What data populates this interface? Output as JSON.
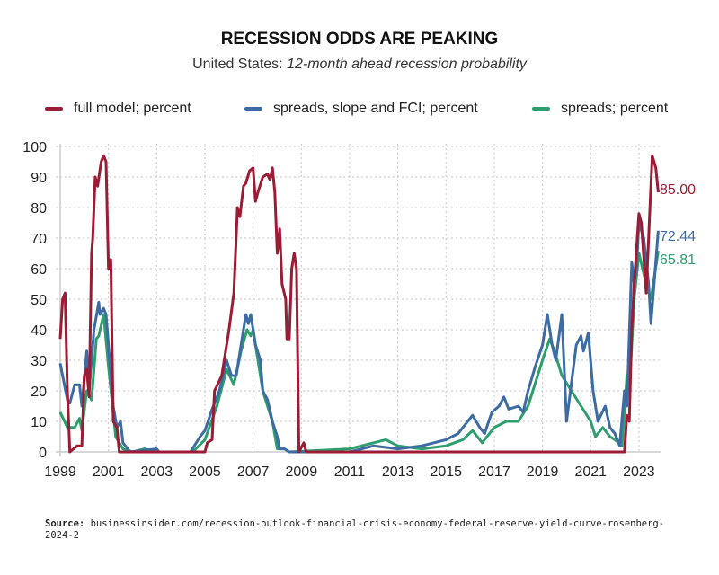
{
  "chart_data": {
    "type": "line",
    "title": "RECESSION ODDS ARE PEAKING",
    "subtitle_prefix": "United States: ",
    "subtitle_italic": "12-month ahead recession probability",
    "xlabel": "",
    "ylabel": "",
    "ylim": [
      0,
      100
    ],
    "xlim": [
      1999,
      2023.9
    ],
    "yticks": [
      0,
      10,
      20,
      30,
      40,
      50,
      60,
      70,
      80,
      90,
      100
    ],
    "xticks": [
      1999,
      2001,
      2003,
      2005,
      2007,
      2009,
      2011,
      2013,
      2015,
      2017,
      2019,
      2021,
      2023
    ],
    "grid": true,
    "legend_position": "top",
    "series": [
      {
        "name": "full model; percent",
        "color": "#9b1c34",
        "end_label": "85.00",
        "points": [
          [
            1999.0,
            37
          ],
          [
            1999.1,
            50
          ],
          [
            1999.2,
            52
          ],
          [
            1999.3,
            20
          ],
          [
            1999.4,
            0
          ],
          [
            1999.7,
            2
          ],
          [
            1999.9,
            2
          ],
          [
            2000.0,
            25
          ],
          [
            2000.1,
            27
          ],
          [
            2000.2,
            18
          ],
          [
            2000.3,
            65
          ],
          [
            2000.35,
            70
          ],
          [
            2000.45,
            90
          ],
          [
            2000.55,
            87
          ],
          [
            2000.7,
            95
          ],
          [
            2000.8,
            97
          ],
          [
            2000.9,
            95
          ],
          [
            2001.0,
            60
          ],
          [
            2001.1,
            63
          ],
          [
            2001.2,
            10
          ],
          [
            2001.35,
            8
          ],
          [
            2001.45,
            0
          ],
          [
            2005.0,
            0
          ],
          [
            2005.1,
            3
          ],
          [
            2005.3,
            4
          ],
          [
            2005.4,
            20
          ],
          [
            2005.7,
            25
          ],
          [
            2006.0,
            40
          ],
          [
            2006.2,
            52
          ],
          [
            2006.35,
            80
          ],
          [
            2006.45,
            77
          ],
          [
            2006.6,
            87
          ],
          [
            2006.7,
            88
          ],
          [
            2006.85,
            92
          ],
          [
            2007.0,
            93
          ],
          [
            2007.1,
            82
          ],
          [
            2007.2,
            85
          ],
          [
            2007.4,
            90
          ],
          [
            2007.6,
            91
          ],
          [
            2007.7,
            89
          ],
          [
            2007.8,
            93
          ],
          [
            2007.9,
            85
          ],
          [
            2008.0,
            65
          ],
          [
            2008.1,
            73
          ],
          [
            2008.2,
            55
          ],
          [
            2008.35,
            50
          ],
          [
            2008.4,
            37
          ],
          [
            2008.5,
            37
          ],
          [
            2008.6,
            60
          ],
          [
            2008.7,
            65
          ],
          [
            2008.8,
            60
          ],
          [
            2008.9,
            0
          ],
          [
            2009.1,
            3
          ],
          [
            2009.2,
            0
          ],
          [
            2022.4,
            0
          ],
          [
            2022.5,
            12
          ],
          [
            2022.6,
            10
          ],
          [
            2022.7,
            40
          ],
          [
            2022.8,
            55
          ],
          [
            2023.0,
            78
          ],
          [
            2023.1,
            75
          ],
          [
            2023.3,
            52
          ],
          [
            2023.4,
            70
          ],
          [
            2023.55,
            97
          ],
          [
            2023.7,
            93
          ],
          [
            2023.8,
            85
          ]
        ]
      },
      {
        "name": "spreads, slope and FCI; percent",
        "color": "#3d6ba3",
        "end_label": "72.44",
        "points": [
          [
            1999.0,
            29
          ],
          [
            1999.3,
            17
          ],
          [
            1999.4,
            16
          ],
          [
            1999.6,
            22
          ],
          [
            1999.8,
            22
          ],
          [
            1999.9,
            15
          ],
          [
            2000.1,
            33
          ],
          [
            2000.2,
            20
          ],
          [
            2000.4,
            40
          ],
          [
            2000.6,
            49
          ],
          [
            2000.65,
            45
          ],
          [
            2000.8,
            47
          ],
          [
            2000.9,
            45
          ],
          [
            2001.0,
            35
          ],
          [
            2001.2,
            15
          ],
          [
            2001.35,
            8
          ],
          [
            2001.5,
            10
          ],
          [
            2001.6,
            3
          ],
          [
            2001.9,
            0
          ],
          [
            2003.0,
            1
          ],
          [
            2003.1,
            0
          ],
          [
            2004.4,
            0
          ],
          [
            2004.8,
            5
          ],
          [
            2005.0,
            7
          ],
          [
            2005.3,
            14
          ],
          [
            2005.6,
            20
          ],
          [
            2005.9,
            30
          ],
          [
            2006.1,
            25
          ],
          [
            2006.3,
            25
          ],
          [
            2006.5,
            35
          ],
          [
            2006.7,
            45
          ],
          [
            2006.8,
            42
          ],
          [
            2006.9,
            45
          ],
          [
            2007.1,
            35
          ],
          [
            2007.3,
            30
          ],
          [
            2007.4,
            20
          ],
          [
            2007.6,
            17
          ],
          [
            2007.8,
            10
          ],
          [
            2008.0,
            5
          ],
          [
            2008.1,
            1
          ],
          [
            2008.3,
            1
          ],
          [
            2008.5,
            0
          ],
          [
            2011.0,
            0
          ],
          [
            2012.0,
            2
          ],
          [
            2013.0,
            1
          ],
          [
            2014.0,
            2
          ],
          [
            2015.0,
            4
          ],
          [
            2015.5,
            6
          ],
          [
            2016.1,
            12
          ],
          [
            2016.4,
            8
          ],
          [
            2016.6,
            6
          ],
          [
            2016.9,
            13
          ],
          [
            2017.2,
            15
          ],
          [
            2017.4,
            18
          ],
          [
            2017.6,
            14
          ],
          [
            2018.0,
            15
          ],
          [
            2018.2,
            13
          ],
          [
            2018.4,
            20
          ],
          [
            2018.7,
            28
          ],
          [
            2019.0,
            35
          ],
          [
            2019.2,
            45
          ],
          [
            2019.4,
            35
          ],
          [
            2019.55,
            30
          ],
          [
            2019.8,
            45
          ],
          [
            2020.0,
            10
          ],
          [
            2020.4,
            35
          ],
          [
            2020.6,
            38
          ],
          [
            2020.7,
            33
          ],
          [
            2020.9,
            39
          ],
          [
            2021.1,
            20
          ],
          [
            2021.3,
            10
          ],
          [
            2021.6,
            15
          ],
          [
            2021.8,
            8
          ],
          [
            2022.0,
            6
          ],
          [
            2022.2,
            2
          ],
          [
            2022.4,
            20
          ],
          [
            2022.5,
            15
          ],
          [
            2022.7,
            62
          ],
          [
            2022.8,
            55
          ],
          [
            2022.9,
            60
          ],
          [
            2023.0,
            75
          ],
          [
            2023.2,
            70
          ],
          [
            2023.4,
            55
          ],
          [
            2023.5,
            42
          ],
          [
            2023.8,
            72.44
          ]
        ]
      },
      {
        "name": "spreads; percent",
        "color": "#2e9e6e",
        "end_label": "65.81",
        "points": [
          [
            1999.0,
            13
          ],
          [
            1999.3,
            8
          ],
          [
            1999.6,
            8
          ],
          [
            1999.8,
            11
          ],
          [
            1999.9,
            7
          ],
          [
            2000.1,
            20
          ],
          [
            2000.3,
            17
          ],
          [
            2000.5,
            37
          ],
          [
            2000.6,
            38
          ],
          [
            2000.8,
            45
          ],
          [
            2001.0,
            28
          ],
          [
            2001.3,
            5
          ],
          [
            2001.6,
            1
          ],
          [
            2002.0,
            0
          ],
          [
            2002.5,
            1
          ],
          [
            2003.0,
            0
          ],
          [
            2004.5,
            0
          ],
          [
            2005.0,
            4
          ],
          [
            2005.5,
            15
          ],
          [
            2005.9,
            27
          ],
          [
            2006.2,
            22
          ],
          [
            2006.5,
            33
          ],
          [
            2006.75,
            40
          ],
          [
            2006.9,
            38
          ],
          [
            2007.0,
            40
          ],
          [
            2007.2,
            30
          ],
          [
            2007.4,
            20
          ],
          [
            2007.6,
            15
          ],
          [
            2007.8,
            10
          ],
          [
            2008.0,
            1
          ],
          [
            2008.3,
            1
          ],
          [
            2008.5,
            0
          ],
          [
            2011.0,
            1
          ],
          [
            2012.0,
            3
          ],
          [
            2012.5,
            4
          ],
          [
            2013.0,
            2
          ],
          [
            2014.0,
            1
          ],
          [
            2015.0,
            2
          ],
          [
            2015.7,
            4
          ],
          [
            2016.1,
            7
          ],
          [
            2016.5,
            3
          ],
          [
            2017.0,
            8
          ],
          [
            2017.5,
            10
          ],
          [
            2018.0,
            10
          ],
          [
            2018.4,
            15
          ],
          [
            2019.0,
            30
          ],
          [
            2019.3,
            37
          ],
          [
            2019.5,
            33
          ],
          [
            2019.8,
            25
          ],
          [
            2020.2,
            20
          ],
          [
            2020.6,
            15
          ],
          [
            2021.0,
            10
          ],
          [
            2021.2,
            5
          ],
          [
            2021.5,
            8
          ],
          [
            2021.8,
            5
          ],
          [
            2022.0,
            4
          ],
          [
            2022.3,
            2
          ],
          [
            2022.5,
            25
          ],
          [
            2022.6,
            20
          ],
          [
            2022.8,
            50
          ],
          [
            2023.0,
            65
          ],
          [
            2023.3,
            55
          ],
          [
            2023.5,
            50
          ],
          [
            2023.8,
            65.81
          ]
        ]
      }
    ]
  },
  "source": {
    "label": "Source:",
    "text": "businessinsider.com/recession-outlook-financial-crisis-economy-federal-reserve-yield-curve-rosenberg-2024-2"
  }
}
